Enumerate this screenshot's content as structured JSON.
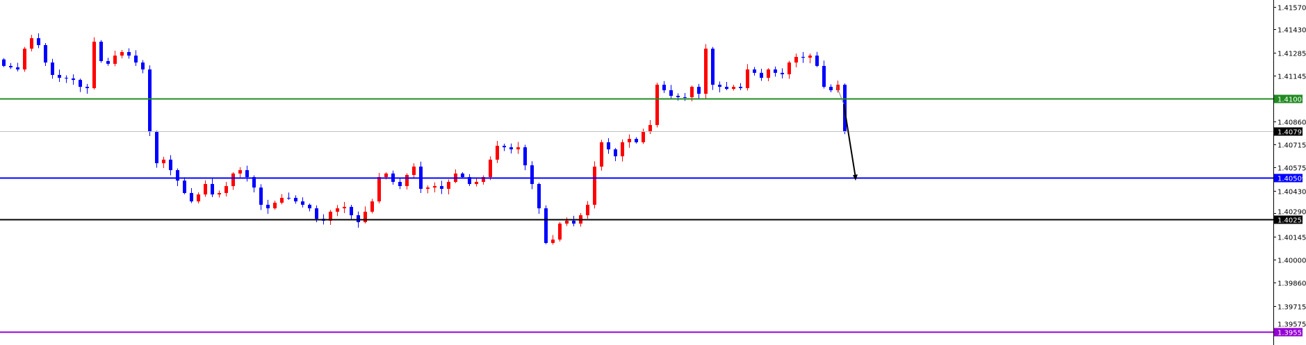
{
  "chart_data": {
    "type": "candlestick",
    "title": "",
    "xlabel": "",
    "ylabel": "",
    "ylim": [
      1.3953,
      1.416
    ],
    "grid": false,
    "colors": {
      "up": "#ff0000",
      "down": "#0000ff",
      "background": "#ffffff",
      "axis": "#000000"
    },
    "y_ticks": [
      "1.41570",
      "1.41430",
      "1.41285",
      "1.41145",
      "1.40860",
      "1.40715",
      "1.40575",
      "1.40430",
      "1.40290",
      "1.40145",
      "1.40000",
      "1.39860",
      "1.39715",
      "1.39575"
    ],
    "close": [
      1.41204,
      1.41195,
      1.41182,
      1.41311,
      1.41376,
      1.41333,
      1.41225,
      1.41148,
      1.4113,
      1.41126,
      1.41117,
      1.41074,
      1.41066,
      1.41354,
      1.41234,
      1.41217,
      1.41268,
      1.4129,
      1.41268,
      1.41225,
      1.41182,
      1.40794,
      1.406,
      1.40622,
      1.40557,
      1.40492,
      1.40415,
      1.40363,
      1.40406,
      1.40471,
      1.40406,
      1.40415,
      1.40458,
      1.40536,
      1.40557,
      1.40514,
      1.40449,
      1.40342,
      1.4032,
      1.40355,
      1.40385,
      1.40385,
      1.40363,
      1.40342,
      1.4032,
      1.40255,
      1.40243,
      1.40299,
      1.4032,
      1.40329,
      1.40277,
      1.40234,
      1.40299,
      1.40363,
      1.40514,
      1.40536,
      1.40484,
      1.40458,
      1.40527,
      1.40579,
      1.40441,
      1.40449,
      1.40458,
      1.40441,
      1.40484,
      1.40536,
      1.40514,
      1.40471,
      1.40484,
      1.40514,
      1.40622,
      1.40708,
      1.40699,
      1.40686,
      1.40699,
      1.40587,
      1.40471,
      1.4032,
      1.40105,
      1.40126,
      1.40225,
      1.40243,
      1.40225,
      1.40277,
      1.40342,
      1.40579,
      1.4073,
      1.40686,
      1.40643,
      1.4073,
      1.40751,
      1.4073,
      1.40794,
      1.40837,
      1.41087,
      1.41053,
      1.41018,
      1.4101,
      1.4101,
      1.41074,
      1.41031,
      1.41311,
      1.41087,
      1.41074,
      1.41061,
      1.41074,
      1.41066,
      1.41182,
      1.41161,
      1.4113,
      1.41182,
      1.41161,
      1.41152,
      1.41225,
      1.4126,
      1.41255,
      1.41268,
      1.41204,
      1.41074,
      1.41053,
      1.41087,
      1.40797
    ],
    "horizontal_lines": [
      {
        "value": 1.41001,
        "label": "1.41001",
        "color": "#228b22"
      },
      {
        "value": 1.40797,
        "label": "1.40797",
        "color": "#c0c0c0",
        "tag_color": "#000000"
      },
      {
        "value": 1.40509,
        "label": "1.40509",
        "color": "#0000ff"
      },
      {
        "value": 1.40253,
        "label": "1.40253",
        "color": "#000000"
      },
      {
        "value": 1.39552,
        "label": "1.39552",
        "color": "#9400d3"
      }
    ],
    "annotation_arrow": {
      "from": 1.41087,
      "to": 1.40509,
      "color": "#000000"
    }
  }
}
